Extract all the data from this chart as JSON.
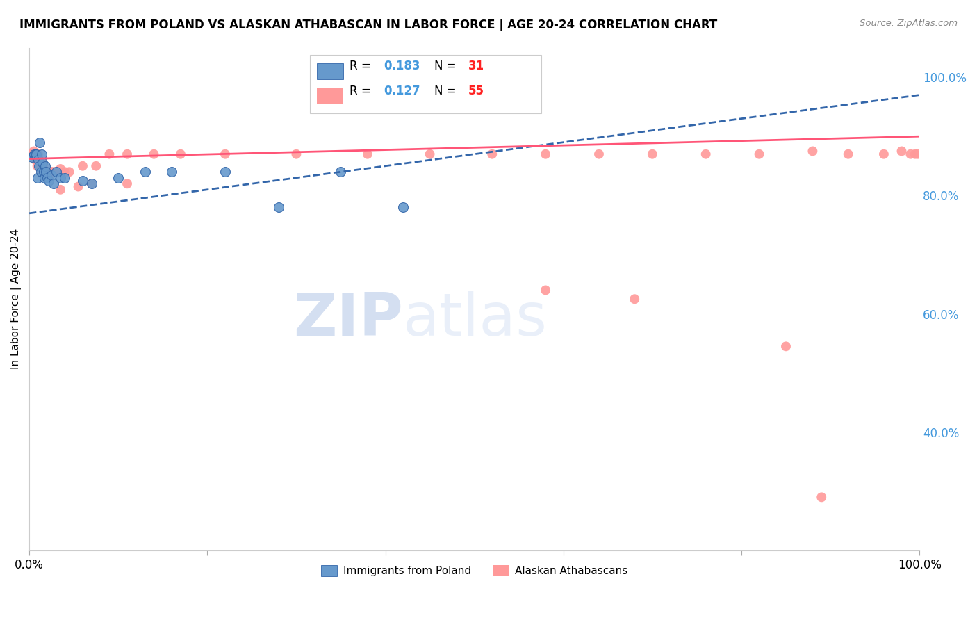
{
  "title": "IMMIGRANTS FROM POLAND VS ALASKAN ATHABASCAN IN LABOR FORCE | AGE 20-24 CORRELATION CHART",
  "source": "Source: ZipAtlas.com",
  "ylabel": "In Labor Force | Age 20-24",
  "right_yticks_vals": [
    1.0,
    0.8,
    0.6,
    0.4
  ],
  "right_ytick_labels": [
    "100.0%",
    "80.0%",
    "60.0%",
    "40.0%"
  ],
  "legend_blue_r": "R = 0.183",
  "legend_blue_n": "N = 31",
  "legend_pink_r": "R = 0.127",
  "legend_pink_n": "N = 55",
  "blue_scatter_x": [
    0.003,
    0.005,
    0.007,
    0.008,
    0.009,
    0.01,
    0.011,
    0.012,
    0.013,
    0.014,
    0.015,
    0.016,
    0.017,
    0.018,
    0.019,
    0.02,
    0.022,
    0.025,
    0.027,
    0.03,
    0.035,
    0.04,
    0.06,
    0.07,
    0.1,
    0.13,
    0.16,
    0.22,
    0.28,
    0.35,
    0.42
  ],
  "blue_scatter_y": [
    0.865,
    0.87,
    0.87,
    0.87,
    0.83,
    0.86,
    0.85,
    0.89,
    0.84,
    0.87,
    0.855,
    0.84,
    0.83,
    0.85,
    0.84,
    0.83,
    0.825,
    0.835,
    0.82,
    0.84,
    0.83,
    0.83,
    0.825,
    0.82,
    0.83,
    0.84,
    0.84,
    0.84,
    0.78,
    0.84,
    0.78
  ],
  "pink_scatter_x": [
    0.003,
    0.005,
    0.006,
    0.007,
    0.008,
    0.009,
    0.01,
    0.011,
    0.012,
    0.013,
    0.014,
    0.015,
    0.016,
    0.017,
    0.018,
    0.02,
    0.022,
    0.025,
    0.028,
    0.03,
    0.035,
    0.04,
    0.045,
    0.06,
    0.075,
    0.09,
    0.11,
    0.14,
    0.17,
    0.22,
    0.3,
    0.38,
    0.45,
    0.52,
    0.58,
    0.64,
    0.7,
    0.76,
    0.82,
    0.88,
    0.92,
    0.96,
    0.98,
    0.99,
    0.995,
    0.998,
    0.025,
    0.035,
    0.055,
    0.07,
    0.11,
    0.58,
    0.68,
    0.85,
    0.89
  ],
  "pink_scatter_y": [
    0.87,
    0.875,
    0.87,
    0.86,
    0.865,
    0.85,
    0.87,
    0.86,
    0.85,
    0.855,
    0.84,
    0.855,
    0.85,
    0.84,
    0.84,
    0.84,
    0.83,
    0.84,
    0.84,
    0.84,
    0.845,
    0.84,
    0.84,
    0.85,
    0.85,
    0.87,
    0.87,
    0.87,
    0.87,
    0.87,
    0.87,
    0.87,
    0.87,
    0.87,
    0.87,
    0.87,
    0.87,
    0.87,
    0.87,
    0.875,
    0.87,
    0.87,
    0.875,
    0.87,
    0.87,
    0.87,
    0.84,
    0.81,
    0.815,
    0.82,
    0.82,
    0.64,
    0.625,
    0.545,
    0.29
  ],
  "blue_trendline_x": [
    0.0,
    1.0
  ],
  "blue_trendline_y": [
    0.77,
    0.97
  ],
  "pink_trendline_x": [
    0.0,
    1.0
  ],
  "pink_trendline_y": [
    0.862,
    0.9
  ],
  "xlim": [
    0.0,
    1.0
  ],
  "ylim": [
    0.2,
    1.05
  ],
  "blue_color": "#6699CC",
  "pink_color": "#FF9999",
  "blue_line_color": "#3366AA",
  "pink_line_color": "#FF5577",
  "watermark_zip": "ZIP",
  "watermark_atlas": "atlas",
  "watermark_color": "#D0DDF0",
  "grid_color": "#DDDDDD",
  "right_axis_color": "#4499DD",
  "n_color": "#FF2222",
  "bottom_ticks": [
    "0.0%",
    "100.0%"
  ]
}
